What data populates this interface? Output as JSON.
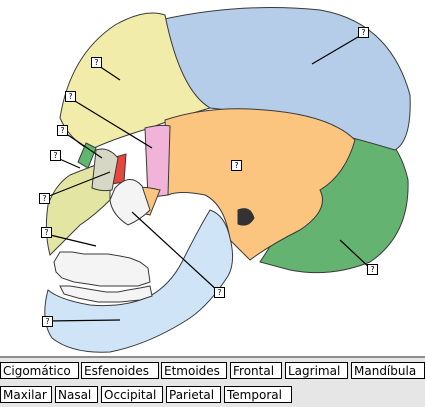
{
  "markers": [
    {
      "id": "m1",
      "text": "?"
    },
    {
      "id": "m2",
      "text": "?"
    },
    {
      "id": "m3",
      "text": "?"
    },
    {
      "id": "m4",
      "text": "?"
    },
    {
      "id": "m5",
      "text": "?"
    },
    {
      "id": "m6",
      "text": "?"
    },
    {
      "id": "m7",
      "text": "?"
    },
    {
      "id": "m8",
      "text": "?"
    },
    {
      "id": "m9",
      "text": "?"
    },
    {
      "id": "m10",
      "text": "?"
    },
    {
      "id": "m11",
      "text": "?"
    }
  ],
  "labels": [
    "Cigomático",
    "Esfenoides",
    "Etmoides",
    "Frontal",
    "Lagrimal",
    "Mandíbula",
    "Maxilar",
    "Nasal",
    "Occipital",
    "Parietal",
    "Temporal"
  ],
  "colors": {
    "frontal": "#f1eca9",
    "parietal": "#b5cde8",
    "temporal": "#fbc47f",
    "occipital": "#65b370",
    "sphenoid": "#f1b3d7",
    "zygomatic": "#fbc47f",
    "maxilla": "#e2e6a2",
    "mandible": "#cfe5f7",
    "nasal": "#5fb86d",
    "lacrimal": "#e6463c",
    "outline": "#3a3a3a",
    "bank_bg": "#e6e6e6"
  }
}
